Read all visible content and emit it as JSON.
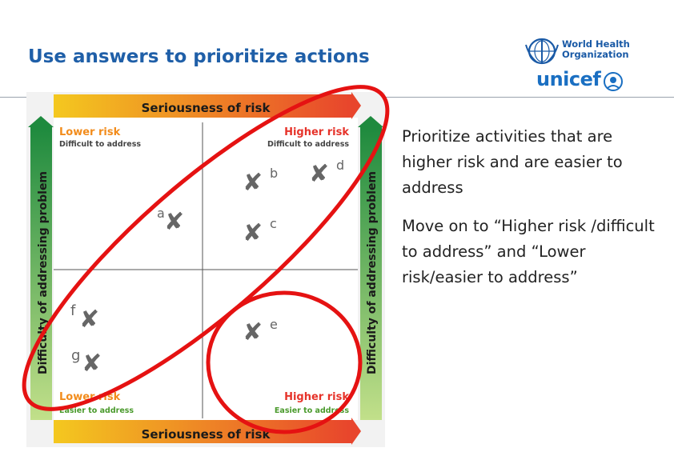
{
  "slide": {
    "title": "Use answers to prioritize actions"
  },
  "logos": {
    "who_icon": "who-emblem-icon",
    "who_line1": "World Health",
    "who_line2": "Organization",
    "unicef_text": "unicef",
    "unicef_icon": "unicef-emblem-icon"
  },
  "matrix": {
    "top_axis_label": "Seriousness of risk",
    "bottom_axis_label": "Seriousness of risk",
    "left_axis_label": "Difficulty of addressing problem",
    "right_axis_label": "Difficulty of addressing problem",
    "quadrants": {
      "top_left": {
        "label": "Lower risk",
        "sub": "Difficult to address"
      },
      "top_right": {
        "label": "Higher risk",
        "sub": "Difficult to address"
      },
      "bottom_left": {
        "label": "Lower risk",
        "sub": "Easier to address"
      },
      "bottom_right": {
        "label": "Higher risk",
        "sub": "Easier to address"
      }
    },
    "marks": [
      {
        "letter": "a",
        "icon": "x-mark-icon"
      },
      {
        "letter": "b",
        "icon": "x-mark-icon"
      },
      {
        "letter": "c",
        "icon": "x-mark-icon"
      },
      {
        "letter": "d",
        "icon": "x-mark-icon"
      },
      {
        "letter": "e",
        "icon": "x-mark-icon"
      },
      {
        "letter": "f",
        "icon": "x-mark-icon"
      },
      {
        "letter": "g",
        "icon": "x-mark-icon"
      }
    ],
    "colors": {
      "axis_arrow_start": "#f4c81f",
      "axis_arrow_end": "#e8452c",
      "side_arrow_top": "#1e8a3e",
      "side_arrow_bottom": "#c2e08a",
      "label_orange": "#f28c1c",
      "label_red": "#e6332a",
      "label_green": "#4a9a2c",
      "mark_gray": "#666666",
      "highlight_red": "#e51212"
    }
  },
  "bullets": [
    "Prioritize activities that are higher risk and are easier to address",
    "Move on to “Higher risk /difficult to address” and “Lower risk/easier to address”"
  ]
}
